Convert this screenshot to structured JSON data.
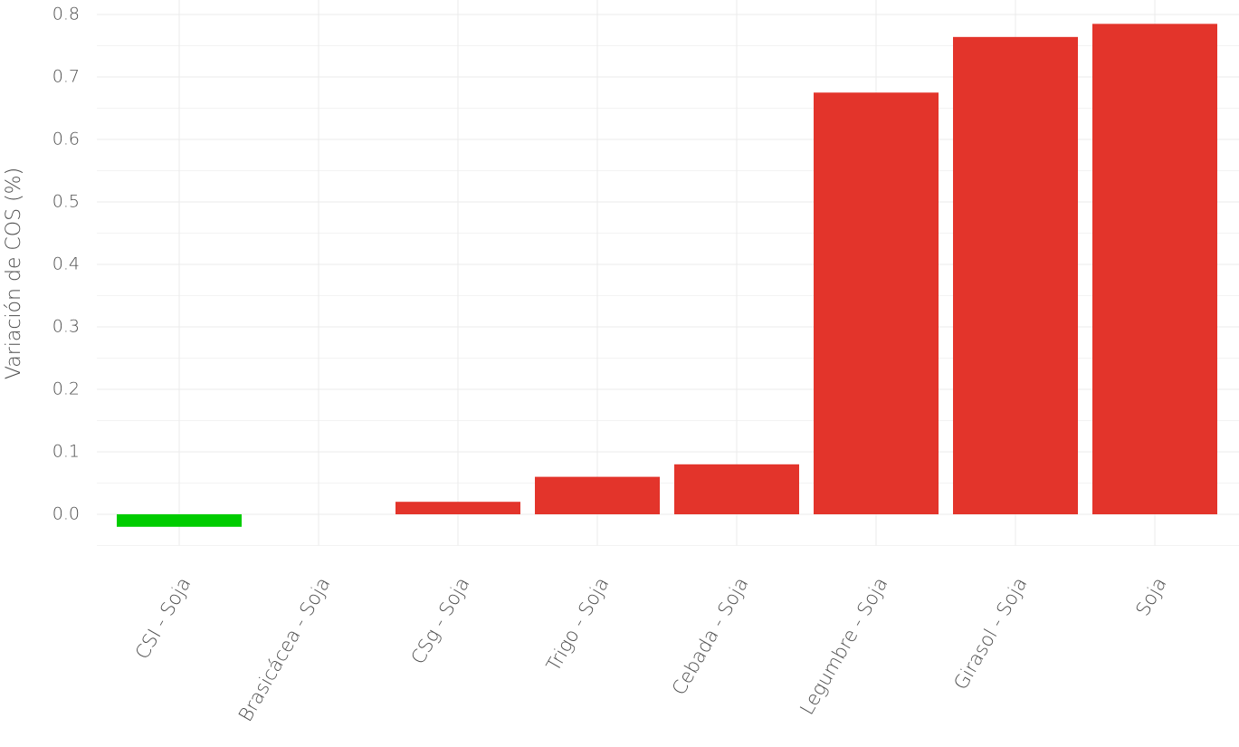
{
  "chart_data": {
    "type": "bar",
    "y_label": "Variación de COS (%)",
    "categories": [
      "CSI - Soja",
      "Brasicácea - Soja",
      "CSg - Soja",
      "Trigo - Soja",
      "Cebada - Soja",
      "Legumbre - Soja",
      "Girasol - Soja",
      "Soja"
    ],
    "values": [
      -0.02,
      0.0,
      0.02,
      0.06,
      0.08,
      0.675,
      0.764,
      0.785
    ],
    "colors": [
      "#00cc00",
      "#e3342b",
      "#e3342b",
      "#e3342b",
      "#e3342b",
      "#e3342b",
      "#e3342b",
      "#e3342b"
    ],
    "ylim": [
      -0.05,
      0.8
    ],
    "yticks": [
      {
        "value": 0,
        "label": "0.0"
      },
      0.1,
      0.2,
      0.3,
      0.4,
      0.5,
      0.6,
      0.7,
      0.8
    ],
    "y_minor_ticks": [
      -0.05,
      0.05,
      0.15,
      0.25,
      0.35,
      0.45,
      0.55,
      0.65,
      0.75
    ],
    "grid": true
  }
}
